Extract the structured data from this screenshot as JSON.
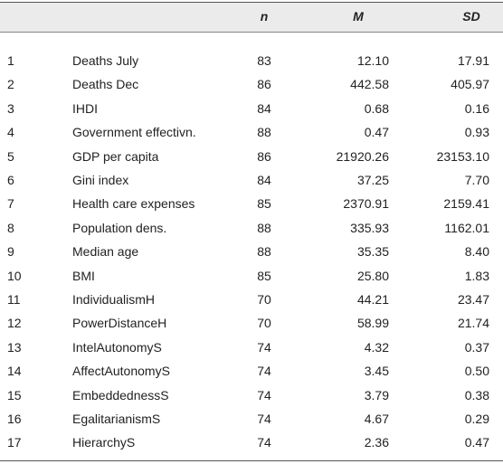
{
  "table": {
    "columns": [
      "n",
      "M",
      "SD"
    ],
    "rows": [
      [
        "1",
        "Deaths July",
        "83",
        "12.10",
        "17.91"
      ],
      [
        "2",
        "Deaths Dec",
        "86",
        "442.58",
        "405.97"
      ],
      [
        "3",
        "IHDI",
        "84",
        "0.68",
        "0.16"
      ],
      [
        "4",
        "Government effectivn.",
        "88",
        "0.47",
        "0.93"
      ],
      [
        "5",
        "GDP per capita",
        "86",
        "21920.26",
        "23153.10"
      ],
      [
        "6",
        "Gini index",
        "84",
        "37.25",
        "7.70"
      ],
      [
        "7",
        "Health care expenses",
        "85",
        "2370.91",
        "2159.41"
      ],
      [
        "8",
        "Population dens.",
        "88",
        "335.93",
        "1162.01"
      ],
      [
        "9",
        "Median age",
        "88",
        "35.35",
        "8.40"
      ],
      [
        "10",
        "BMI",
        "85",
        "25.80",
        "1.83"
      ],
      [
        "11",
        "IndividualismH",
        "70",
        "44.21",
        "23.47"
      ],
      [
        "12",
        "PowerDistanceH",
        "70",
        "58.99",
        "21.74"
      ],
      [
        "13",
        "IntelAutonomyS",
        "74",
        "4.32",
        "0.37"
      ],
      [
        "14",
        "AffectAutonomyS",
        "74",
        "3.45",
        "0.50"
      ],
      [
        "15",
        "EmbeddednessS",
        "74",
        "3.79",
        "0.38"
      ],
      [
        "16",
        "EgalitarianismS",
        "74",
        "4.67",
        "0.29"
      ],
      [
        "17",
        "HierarchyS",
        "74",
        "2.36",
        "0.47"
      ]
    ]
  }
}
